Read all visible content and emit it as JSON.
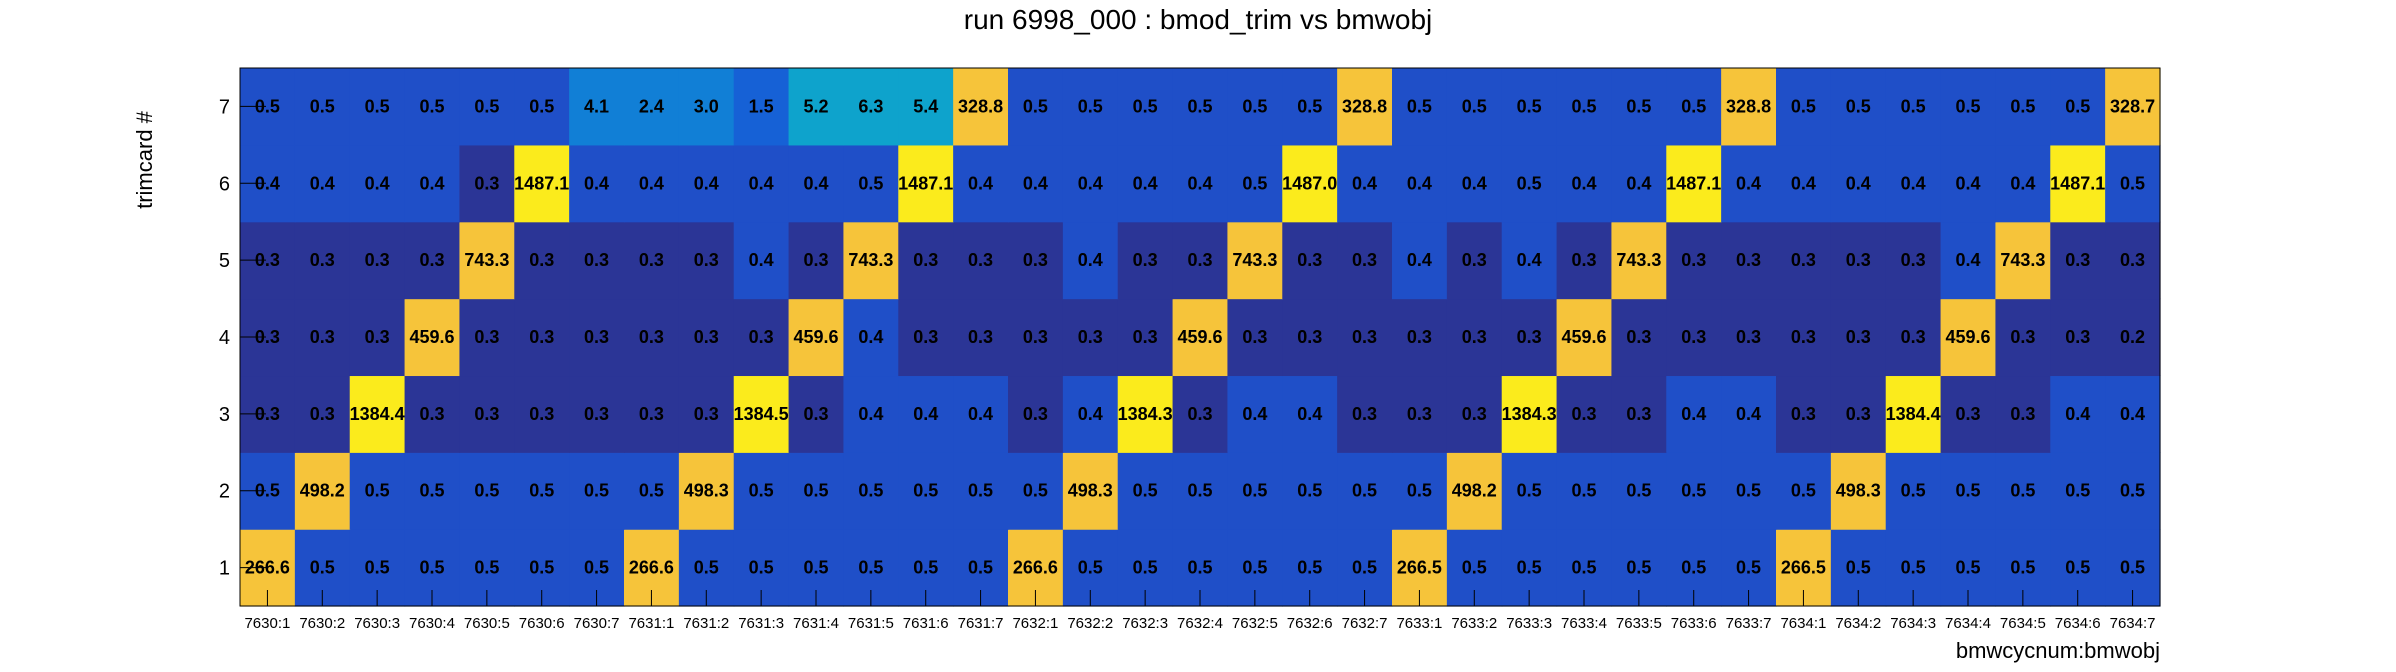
{
  "chart_data": {
    "type": "heatmap",
    "title": "run 6998_000 : bmod_trim vs bmwobj",
    "xlabel": "bmwcycnum:bmwobj",
    "ylabel": "trimcard #",
    "x_categories": [
      "7630:1",
      "7630:2",
      "7630:3",
      "7630:4",
      "7630:5",
      "7630:6",
      "7630:7",
      "7631:1",
      "7631:2",
      "7631:3",
      "7631:4",
      "7631:5",
      "7631:6",
      "7631:7",
      "7632:1",
      "7632:2",
      "7632:3",
      "7632:4",
      "7632:5",
      "7632:6",
      "7632:7",
      "7633:1",
      "7633:2",
      "7633:3",
      "7633:4",
      "7633:5",
      "7633:6",
      "7633:7",
      "7634:1",
      "7634:2",
      "7634:3",
      "7634:4",
      "7634:5",
      "7634:6",
      "7634:7"
    ],
    "y_categories": [
      "1",
      "2",
      "3",
      "4",
      "5",
      "6",
      "7"
    ],
    "values": [
      [
        "266.6",
        "0.5",
        "0.5",
        "0.5",
        "0.5",
        "0.5",
        "0.5",
        "266.6",
        "0.5",
        "0.5",
        "0.5",
        "0.5",
        "0.5",
        "0.5",
        "266.6",
        "0.5",
        "0.5",
        "0.5",
        "0.5",
        "0.5",
        "0.5",
        "266.5",
        "0.5",
        "0.5",
        "0.5",
        "0.5",
        "0.5",
        "0.5",
        "266.5",
        "0.5",
        "0.5",
        "0.5",
        "0.5",
        "0.5",
        "0.5"
      ],
      [
        "0.5",
        "498.2",
        "0.5",
        "0.5",
        "0.5",
        "0.5",
        "0.5",
        "0.5",
        "498.3",
        "0.5",
        "0.5",
        "0.5",
        "0.5",
        "0.5",
        "0.5",
        "498.3",
        "0.5",
        "0.5",
        "0.5",
        "0.5",
        "0.5",
        "0.5",
        "498.2",
        "0.5",
        "0.5",
        "0.5",
        "0.5",
        "0.5",
        "0.5",
        "498.3",
        "0.5",
        "0.5",
        "0.5",
        "0.5",
        "0.5"
      ],
      [
        "0.3",
        "0.3",
        "1384.4",
        "0.3",
        "0.3",
        "0.3",
        "0.3",
        "0.3",
        "0.3",
        "1384.5",
        "0.3",
        "0.4",
        "0.4",
        "0.4",
        "0.3",
        "0.4",
        "1384.3",
        "0.3",
        "0.4",
        "0.4",
        "0.3",
        "0.3",
        "0.3",
        "1384.3",
        "0.3",
        "0.3",
        "0.4",
        "0.4",
        "0.3",
        "0.3",
        "1384.4",
        "0.3",
        "0.3",
        "0.4",
        "0.4"
      ],
      [
        "0.3",
        "0.3",
        "0.3",
        "459.6",
        "0.3",
        "0.3",
        "0.3",
        "0.3",
        "0.3",
        "0.3",
        "459.6",
        "0.4",
        "0.3",
        "0.3",
        "0.3",
        "0.3",
        "0.3",
        "459.6",
        "0.3",
        "0.3",
        "0.3",
        "0.3",
        "0.3",
        "0.3",
        "459.6",
        "0.3",
        "0.3",
        "0.3",
        "0.3",
        "0.3",
        "0.3",
        "459.6",
        "0.3",
        "0.3",
        "0.2"
      ],
      [
        "0.3",
        "0.3",
        "0.3",
        "0.3",
        "743.3",
        "0.3",
        "0.3",
        "0.3",
        "0.3",
        "0.4",
        "0.3",
        "743.3",
        "0.3",
        "0.3",
        "0.3",
        "0.4",
        "0.3",
        "0.3",
        "743.3",
        "0.3",
        "0.3",
        "0.4",
        "0.3",
        "0.4",
        "0.3",
        "743.3",
        "0.3",
        "0.3",
        "0.3",
        "0.3",
        "0.3",
        "0.4",
        "743.3",
        "0.3",
        "0.3"
      ],
      [
        "0.4",
        "0.4",
        "0.4",
        "0.4",
        "0.3",
        "1487.1",
        "0.4",
        "0.4",
        "0.4",
        "0.4",
        "0.4",
        "0.5",
        "1487.1",
        "0.4",
        "0.4",
        "0.4",
        "0.4",
        "0.4",
        "0.5",
        "1487.0",
        "0.4",
        "0.4",
        "0.4",
        "0.5",
        "0.4",
        "0.4",
        "1487.1",
        "0.4",
        "0.4",
        "0.4",
        "0.4",
        "0.4",
        "0.4",
        "1487.1",
        "0.5"
      ],
      [
        "0.5",
        "0.5",
        "0.5",
        "0.5",
        "0.5",
        "0.5",
        "4.1",
        "2.4",
        "3.0",
        "1.5",
        "5.2",
        "6.3",
        "5.4",
        "328.8",
        "0.5",
        "0.5",
        "0.5",
        "0.5",
        "0.5",
        "0.5",
        "328.8",
        "0.5",
        "0.5",
        "0.5",
        "0.5",
        "0.5",
        "0.5",
        "328.8",
        "0.5",
        "0.5",
        "0.5",
        "0.5",
        "0.5",
        "0.5",
        "328.7"
      ]
    ],
    "colors": {
      "low_dark": "#2b3596",
      "low": "#1f4fc8",
      "low_light": "#1661d6",
      "mid_cyan": "#0ea3cc",
      "mid_blue": "#117fd6",
      "peak_orange": "#f6c43a",
      "peak_yellow": "#fbeb1c"
    }
  }
}
